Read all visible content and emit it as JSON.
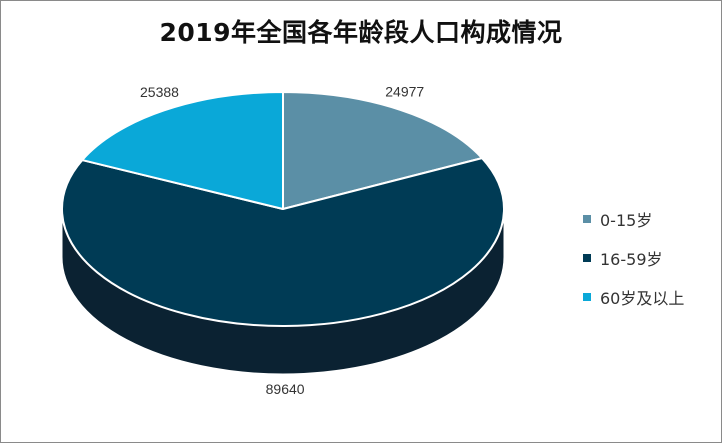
{
  "chart_data": {
    "type": "pie",
    "title": "2019年全国各年龄段人口构成情况",
    "categories": [
      "0-15岁",
      "16-59岁",
      "60岁及以上"
    ],
    "values": [
      24977,
      89640,
      25388
    ],
    "colors": [
      "#5b8fa6",
      "#003b55",
      "#0aa8d8"
    ],
    "side_colors": [
      "#3f6f82",
      "#0b2232",
      "#0a7fa5"
    ],
    "data_labels": [
      "24977",
      "89640",
      "25388"
    ],
    "legend_position": "right",
    "style": "3d"
  }
}
